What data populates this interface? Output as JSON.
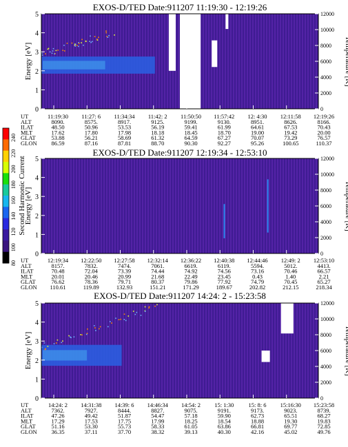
{
  "colors": {
    "background_fill": "#4a1f9a",
    "stripe_a": "#3d1a90",
    "stripe_b": "#5424a8",
    "band_blue": "#2b5de0",
    "band_core": "#44a4ee",
    "data_gap": "#ffffff"
  },
  "colorbar": {
    "title": "Second Harmonic Current",
    "ticks": [
      "240",
      "220",
      "200",
      "180",
      "160",
      "140",
      "120",
      "100",
      "80"
    ],
    "colors": [
      "#ff0000",
      "#ff6a00",
      "#ffd200",
      "#d8ff00",
      "#19e00b",
      "#18ca9c",
      "#17b6ee",
      "#1a66f0",
      "#2a2ae0",
      "#3a1aa0",
      "#3a157f",
      "#000000"
    ]
  },
  "row_labels": [
    "UT",
    "ALT",
    "ILAT",
    "MLT",
    "GLAT",
    "GLON"
  ],
  "chart_data": [
    {
      "type": "heatmap",
      "title": "EXOS-D/TED   Date:911207   11:19:30 - 12:19:26",
      "ylabel": "Energy [eV]",
      "ylabel_right": "Temperature [K]",
      "ylim": [
        0,
        5
      ],
      "yticks": [
        "0",
        "1",
        "2",
        "3",
        "4",
        "5"
      ],
      "ylim_right": [
        0,
        12000
      ],
      "yticks_right": [
        "0",
        "2000",
        "4000",
        "6000",
        "8000",
        "10000",
        "12000"
      ],
      "ut": [
        "11:19:30",
        "11:27: 6",
        "11:34:34",
        "11:42: 2",
        "11:50:50",
        "11:57:42",
        "12: 4:30",
        "12:11:58",
        "12:19:26"
      ],
      "rows": {
        "ALT": [
          "8090.",
          "8575.",
          "8917.",
          "9125.",
          "9199.",
          "9130.",
          "8951.",
          "8626.",
          "8166."
        ],
        "ILAT": [
          "48.50",
          "50.96",
          "53.53",
          "56.19",
          "59.41",
          "61.99",
          "64.61",
          "67.53",
          "70.43"
        ],
        "MLT": [
          "17.62",
          "17.80",
          "17.98",
          "18.18",
          "18.45",
          "18.70",
          "19.00",
          "19.42",
          "20.00"
        ],
        "GLAT": [
          "53.88",
          "56.21",
          "58.69",
          "61.32",
          "64.59",
          "67.27",
          "70.07",
          "73.29",
          "76.57"
        ],
        "GLON": [
          "86.59",
          "87.16",
          "87.81",
          "88.70",
          "90.30",
          "92.27",
          "95.26",
          "100.65",
          "110.37"
        ]
      },
      "band": {
        "x_end": 0.41,
        "e_center": 2.3,
        "e_half": 0.45
      },
      "dots": {
        "x_end": 0.27,
        "e_start": 2.9,
        "e_end": 4.1
      },
      "gaps": [
        {
          "x0": 0.46,
          "x1": 0.485,
          "y0": 2.0,
          "y1": 5.0
        },
        {
          "x0": 0.5,
          "x1": 0.575,
          "y0": 0.0,
          "y1": 5.0
        },
        {
          "x0": 0.615,
          "x1": 0.635,
          "y0": 2.2,
          "y1": 3.6
        },
        {
          "x0": 0.665,
          "x1": 0.675,
          "y0": 4.2,
          "y1": 5.0
        }
      ],
      "lines": []
    },
    {
      "type": "heatmap",
      "title": "EXOS-D/TED   Date:911207   12:19:34 - 12:53:10",
      "ylabel": "Energy [eV]",
      "ylabel_right": "Temperature [K]",
      "ylim": [
        0,
        5
      ],
      "yticks": [
        "0",
        "1",
        "2",
        "3",
        "4",
        "5"
      ],
      "ylim_right": [
        0,
        12000
      ],
      "yticks_right": [
        "0",
        "2000",
        "4000",
        "6000",
        "8000",
        "10000",
        "12000"
      ],
      "ut": [
        "12:19:34",
        "12:22:50",
        "12:27:58",
        "12:32:14",
        "12:36:22",
        "12:40:38",
        "12:44:46",
        "12:49: 2",
        "12:53:10"
      ],
      "rows": {
        "ALT": [
          "8157.",
          "7832.",
          "7474.",
          "7061.",
          "6619.",
          "6119.",
          "5594.",
          "5012.",
          "4413."
        ],
        "ILAT": [
          "70.48",
          "72.04",
          "73.39",
          "74.44",
          "74.92",
          "74.56",
          "73.16",
          "70.46",
          "66.57"
        ],
        "MLT": [
          "20.01",
          "20.46",
          "20.99",
          "21.68",
          "22.49",
          "23.45",
          "0.43",
          "1.40",
          "2.21"
        ],
        "GLAT": [
          "76.62",
          "78.36",
          "79.71",
          "80.37",
          "79.86",
          "77.92",
          "74.79",
          "70.45",
          "65.27"
        ],
        "GLON": [
          "110.61",
          "119.89",
          "132.93",
          "151.21",
          "171.29",
          "189.67",
          "202.82",
          "212.15",
          "218.34"
        ]
      },
      "band": null,
      "dots": null,
      "gaps": [],
      "lines": [
        {
          "x": 0.658,
          "y0": 0.8,
          "y1": 2.6
        },
        {
          "x": 0.815,
          "y0": 1.1,
          "y1": 3.9
        }
      ]
    },
    {
      "type": "heatmap",
      "title": "EXOS-D/TED   Date:911207   14:24: 2 - 15:23:58",
      "ylabel": "Energy [eV]",
      "ylabel_right": "Temperature [K]",
      "ylim": [
        0,
        5
      ],
      "yticks": [
        "0",
        "1",
        "2",
        "3",
        "4",
        "5"
      ],
      "ylim_right": [
        0,
        12000
      ],
      "yticks_right": [
        "0",
        "2000",
        "4000",
        "6000",
        "8000",
        "10000",
        "12000"
      ],
      "ut": [
        "14:24: 2",
        "14:31:38",
        "14:39: 6",
        "14:46:34",
        "14:54: 2",
        "15: 1:30",
        "15: 8: 6",
        "15:16:30",
        "15:23:58"
      ],
      "rows": {
        "ALT": [
          "7362.",
          "7927.",
          "8444.",
          "8827.",
          "9075.",
          "9191.",
          "9173.",
          "9023.",
          "8739."
        ],
        "ILAT": [
          "47.26",
          "49.42",
          "51.87",
          "54.47",
          "57.18",
          "59.90",
          "62.73",
          "65.51",
          "68.27"
        ],
        "MLT": [
          "17.29",
          "17.53",
          "17.75",
          "17.99",
          "18.25",
          "18.54",
          "18.88",
          "19.30",
          "19.83"
        ],
        "GLAT": [
          "51.16",
          "53.30",
          "55.73",
          "58.33",
          "61.05",
          "63.86",
          "66.81",
          "69.77",
          "72.85"
        ],
        "GLON": [
          "36.35",
          "37.11",
          "37.70",
          "38.32",
          "39.13",
          "40.30",
          "42.16",
          "45.02",
          "49.76"
        ]
      },
      "band": {
        "x_end": 0.29,
        "e_center": 2.25,
        "e_half": 0.55
      },
      "dots": {
        "x_end": 0.42,
        "e_start": 2.7,
        "e_end": 4.9
      },
      "gaps": [
        {
          "x0": 0.795,
          "x1": 0.825,
          "y0": 1.9,
          "y1": 2.5
        },
        {
          "x0": 0.865,
          "x1": 0.91,
          "y0": 3.4,
          "y1": 5.0
        }
      ],
      "lines": []
    }
  ]
}
